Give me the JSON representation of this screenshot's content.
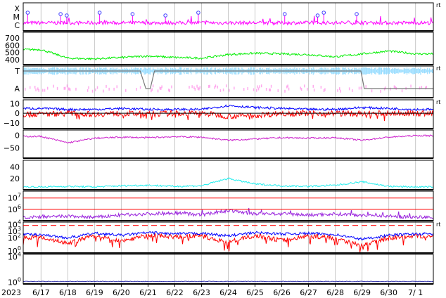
{
  "chart_data": {
    "type": "line",
    "title": "",
    "xlabel": "",
    "x_year_label": "2023",
    "x_ticks": [
      "6/17",
      "6/18",
      "6/19",
      "6/20",
      "6/21",
      "6/22",
      "6/23",
      "6/24",
      "6/25",
      "6/26",
      "6/27",
      "6/28",
      "6/29",
      "6/30",
      "7/ 1"
    ],
    "x_range": [
      "2023-06-16 08:00",
      "2023-07-01 16:00"
    ],
    "grid": true,
    "colors": {
      "magenta": "#ff00ff",
      "green": "#00ee00",
      "lightblue": "#99ddff",
      "pink": "#ffaaee",
      "blue": "#0000ff",
      "red": "#ff0000",
      "darkmagenta": "#cc22cc",
      "cyan": "#22eeee",
      "purple": "#9922dd",
      "navy": "#3333aa",
      "grey": "#777777",
      "grid": "#c8c8c8"
    },
    "panels": [
      {
        "id": "xray-class",
        "ytick_labels": [
          "X",
          "M",
          "C"
        ],
        "right_label": "rt",
        "series": [
          {
            "color": "magenta",
            "approx_level": "C",
            "flares_marked": [
              "6/17",
              "6/18",
              "6/18",
              "6/19",
              "6/20",
              "6/22",
              "6/23",
              "6/26",
              "6/27",
              "6/28",
              "6/29"
            ]
          }
        ]
      },
      {
        "id": "wind-speed",
        "yticks": [
          400,
          500,
          600,
          700
        ],
        "ylim": [
          330,
          780
        ],
        "series": [
          {
            "color": "green",
            "x": [
              "6/17",
              "6/18",
              "6/19",
              "6/20",
              "6/21",
              "6/22",
              "6/23",
              "6/24",
              "6/25",
              "6/26",
              "6/27",
              "6/28",
              "6/29",
              "6/30",
              "7/ 1"
            ],
            "values": [
              540,
              420,
              410,
              430,
              450,
              430,
              420,
              470,
              490,
              480,
              470,
              440,
              480,
              520,
              480
            ]
          }
        ]
      },
      {
        "id": "sector",
        "ytick_labels": [
          "T",
          "A"
        ],
        "right_label": "rt",
        "series": [
          {
            "color": "lightblue",
            "level": "T"
          },
          {
            "color": "pink",
            "level": "A"
          },
          {
            "color": "grey",
            "transitions": [
              "6/21",
              "6/29"
            ]
          }
        ]
      },
      {
        "id": "imf",
        "yticks": [
          -10,
          0,
          10
        ],
        "ylim": [
          -16,
          14
        ],
        "right_label": "rt",
        "series": [
          {
            "color": "blue",
            "x": [
              "6/17",
              "6/18",
              "6/19",
              "6/20",
              "6/21",
              "6/22",
              "6/23",
              "6/24",
              "6/25",
              "6/26",
              "6/27",
              "6/28",
              "6/29",
              "6/30",
              "7/ 1"
            ],
            "values": [
              5,
              4,
              4,
              5,
              4,
              4,
              4,
              8,
              6,
              5,
              4,
              4,
              6,
              5,
              4
            ]
          },
          {
            "color": "red",
            "x": [
              "6/17",
              "6/18",
              "6/19",
              "6/20",
              "6/21",
              "6/22",
              "6/23",
              "6/24",
              "6/25",
              "6/26",
              "6/27",
              "6/28",
              "6/29",
              "6/30",
              "7/ 1"
            ],
            "values": [
              -1,
              0,
              -1,
              0,
              -1,
              0,
              0,
              -3,
              -2,
              0,
              0,
              0,
              -1,
              0,
              0
            ]
          }
        ]
      },
      {
        "id": "dst",
        "yticks": [
          -50,
          0
        ],
        "ylim": [
          -90,
          20
        ],
        "series": [
          {
            "color": "darkmagenta",
            "x": [
              "6/17",
              "6/18",
              "6/19",
              "6/20",
              "6/21",
              "6/22",
              "6/23",
              "6/24",
              "6/25",
              "6/26",
              "6/27",
              "6/28",
              "6/29",
              "6/30",
              "7/ 1"
            ],
            "values": [
              -5,
              -30,
              -12,
              -8,
              -10,
              -6,
              -8,
              -20,
              -15,
              -10,
              -12,
              -10,
              -20,
              -8,
              -2
            ]
          }
        ]
      },
      {
        "id": "ae",
        "yticks": [
          20,
          40
        ],
        "ylim": [
          0,
          52
        ],
        "series": [
          {
            "color": "cyan",
            "x": [
              "6/17",
              "6/18",
              "6/19",
              "6/20",
              "6/21",
              "6/22",
              "6/23",
              "6/24",
              "6/25",
              "6/26",
              "6/27",
              "6/28",
              "6/29",
              "6/30",
              "7/ 1"
            ],
            "values": [
              5,
              6,
              5,
              7,
              8,
              6,
              7,
              20,
              10,
              7,
              6,
              8,
              14,
              6,
              5
            ]
          }
        ]
      },
      {
        "id": "electron-flux",
        "yticks": [
          "10^6",
          "10^7"
        ],
        "ylim_log10": [
          5,
          7.6
        ],
        "reference_lines_log10": [
          6,
          7
        ],
        "series": [
          {
            "color": "purple",
            "x": [
              "6/17",
              "6/18",
              "6/19",
              "6/20",
              "6/21",
              "6/22",
              "6/23",
              "6/24",
              "6/25",
              "6/26",
              "6/27",
              "6/28",
              "6/29",
              "6/30",
              "7/ 1"
            ],
            "values_log10": [
              5.3,
              5.4,
              5.3,
              5.5,
              5.6,
              5.7,
              5.5,
              5.9,
              5.6,
              5.6,
              5.5,
              5.6,
              5.5,
              5.4,
              5.3
            ]
          }
        ]
      },
      {
        "id": "proton-flux",
        "yticks": [
          "10^0",
          "10^2",
          "10^3",
          "10^4"
        ],
        "ylim_log10": [
          -0.3,
          4.4
        ],
        "threshold_log10": 3.9,
        "right_label": "rt",
        "series": [
          {
            "color": "blue",
            "x": [
              "6/17",
              "6/18",
              "6/19",
              "6/20",
              "6/21",
              "6/22",
              "6/23",
              "6/24",
              "6/25",
              "6/26",
              "6/27",
              "6/28",
              "6/29",
              "6/30",
              "7/ 1"
            ],
            "values_log10": [
              2.5,
              2.0,
              2.7,
              2.4,
              2.8,
              2.6,
              2.7,
              2.3,
              2.8,
              2.6,
              2.7,
              2.5,
              1.8,
              2.4,
              2.6
            ]
          },
          {
            "color": "red",
            "x": [
              "6/17",
              "6/18",
              "6/19",
              "6/20",
              "6/21",
              "6/22",
              "6/23",
              "6/24",
              "6/25",
              "6/26",
              "6/27",
              "6/28",
              "6/29",
              "6/30",
              "7/ 1"
            ],
            "values_log10": [
              2.1,
              1.2,
              2.3,
              1.5,
              2.4,
              2.2,
              2.3,
              1.3,
              2.4,
              1.6,
              2.3,
              2.0,
              0.8,
              2.0,
              2.3
            ]
          }
        ]
      },
      {
        "id": "bottom",
        "yticks": [
          "10^0",
          "10^4"
        ],
        "ylim_log10": [
          -0.3,
          4.4
        ],
        "series": [
          {
            "color": "navy",
            "x": [
              "6/17",
              "7/ 1"
            ],
            "values_log10": [
              0.1,
              0.1
            ]
          }
        ]
      }
    ]
  }
}
